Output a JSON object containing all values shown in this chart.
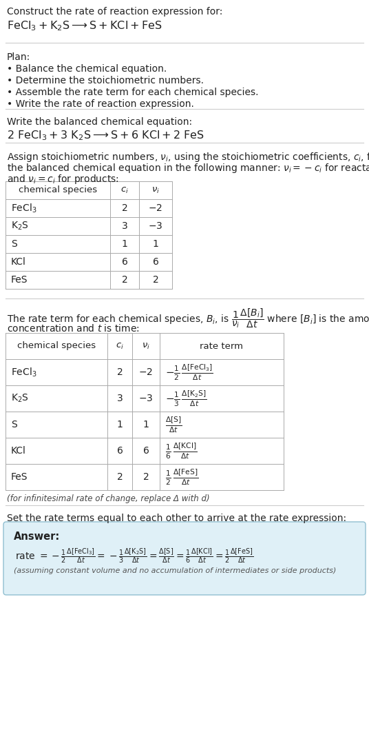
{
  "background_color": "#ffffff",
  "text_color": "#222222",
  "table_border_color": "#aaaaaa",
  "separator_color": "#cccccc",
  "answer_bg_color": "#dff0f7",
  "answer_border_color": "#90bfd0",
  "title_line1": "Construct the rate of reaction expression for:",
  "plan_header": "Plan:",
  "plan_items": [
    "• Balance the chemical equation.",
    "• Determine the stoichiometric numbers.",
    "• Assemble the rate term for each chemical species.",
    "• Write the rate of reaction expression."
  ],
  "balanced_header": "Write the balanced chemical equation:",
  "set_equal_text": "Set the rate terms equal to each other to arrive at the rate expression:",
  "infinitesimal_note": "(for infinitesimal rate of change, replace Δ with d)",
  "answer_label": "Answer:"
}
